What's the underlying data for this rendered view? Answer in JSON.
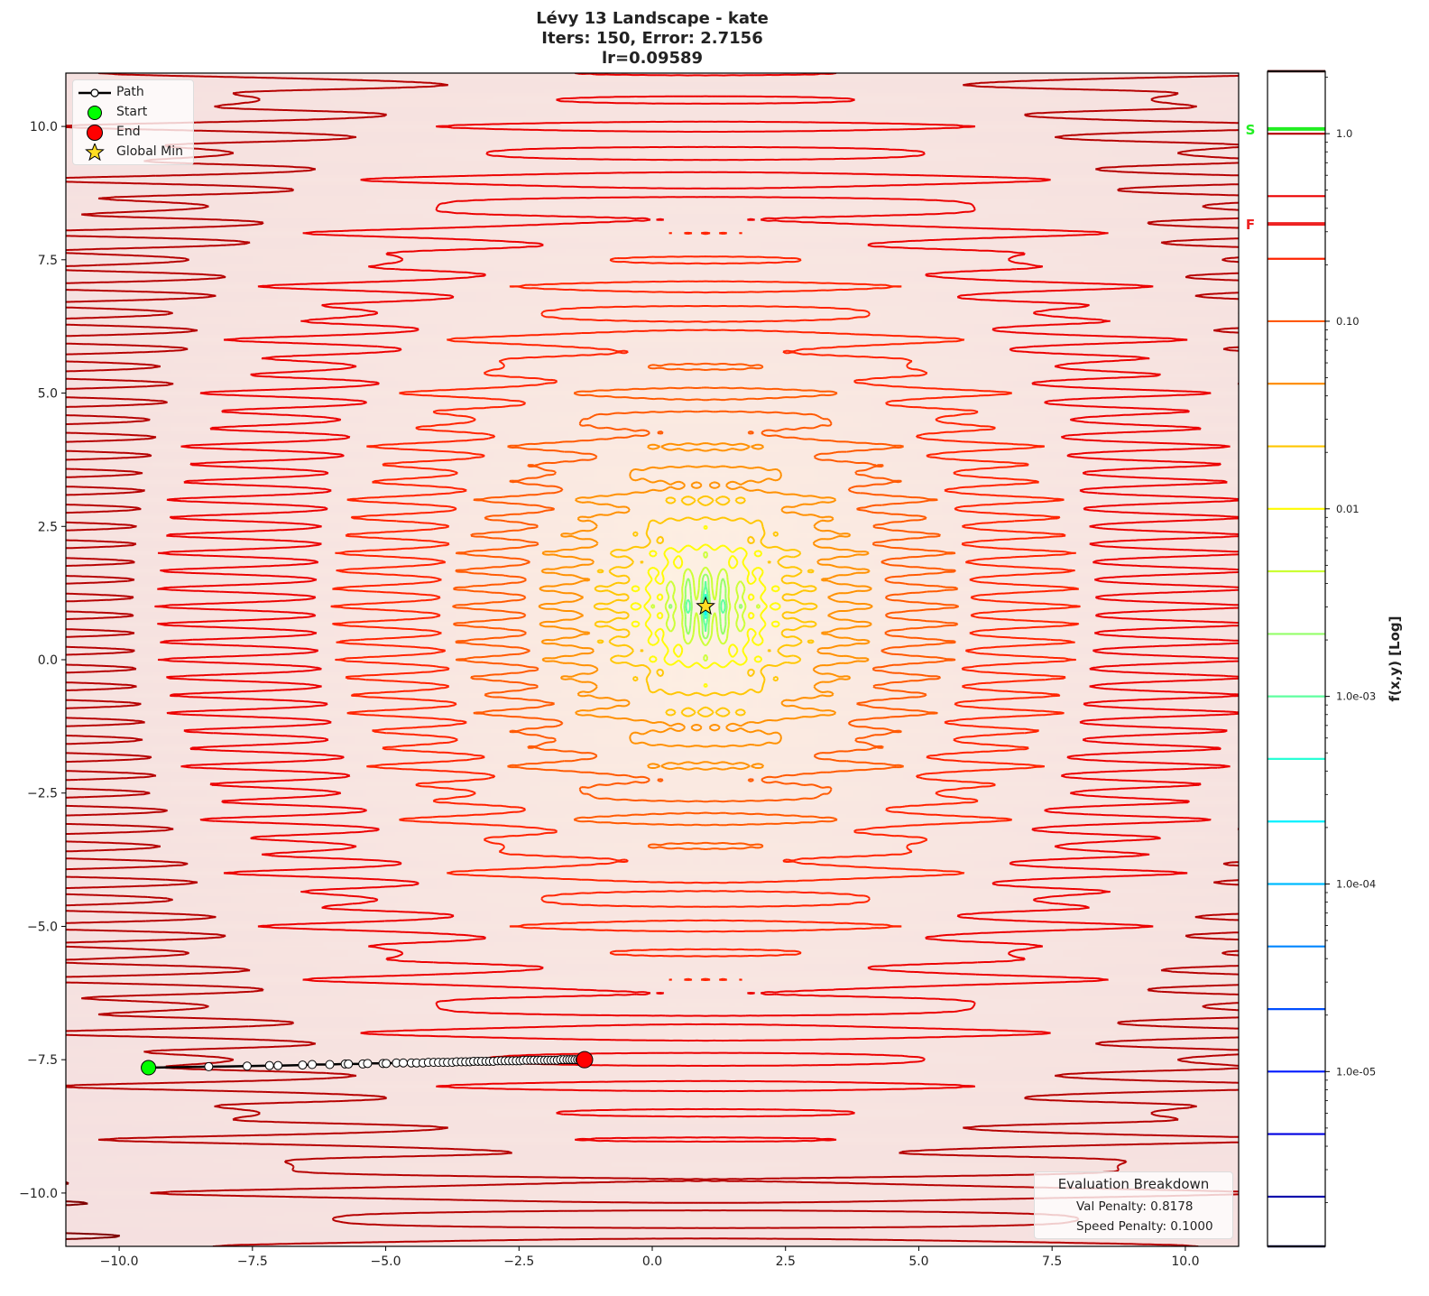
{
  "title": {
    "line1": "Lévy 13 Landscape - kate",
    "line2": "Iters: 150, Error: 2.7156",
    "line3": "lr=0.09589"
  },
  "legend": {
    "items": [
      {
        "label": "Path",
        "icon": "line-with-circle-marker",
        "color": "#000000"
      },
      {
        "label": "Start",
        "icon": "circle-marker",
        "color": "#00ff00"
      },
      {
        "label": "End",
        "icon": "circle-marker",
        "color": "#ff0000"
      },
      {
        "label": "Global Min",
        "icon": "star-marker",
        "color": "#ffdd22"
      }
    ]
  },
  "evaluation": {
    "title": "Evaluation Breakdown",
    "val_penalty": "Val Penalty: 0.8178",
    "speed_penalty": "Speed Penalty: 0.1000"
  },
  "colorbar": {
    "label": "f(x,y) [Log]",
    "scale": "log",
    "range": [
      1.17e-06,
      2.15
    ],
    "colormap": "jet",
    "ticks": [
      {
        "value": 1.0,
        "label": "1.0"
      },
      {
        "value": 0.1,
        "label": "0.10"
      },
      {
        "value": 0.01,
        "label": "0.01"
      },
      {
        "value": 0.001,
        "label": "1.0e-03"
      },
      {
        "value": 0.0001,
        "label": "1.0e-04"
      },
      {
        "value": 1e-05,
        "label": "1.0e-05"
      }
    ],
    "markers": [
      {
        "label": "S",
        "value": 1.06,
        "color": "#22ee22"
      },
      {
        "label": "F",
        "value": 0.33,
        "color": "#ee2222"
      }
    ]
  },
  "chart_data": {
    "type": "contour",
    "function": "Lévy 13",
    "title": "Lévy 13 Landscape - kate\nIters: 150, Error: 2.7156\nlr=0.09589",
    "xlabel": "",
    "ylabel": "",
    "xlim": [
      -11,
      11
    ],
    "ylim": [
      -11,
      11
    ],
    "xticks": [
      {
        "value": -10,
        "label": "−10.0"
      },
      {
        "value": -7.5,
        "label": "−7.5"
      },
      {
        "value": -5,
        "label": "−5.0"
      },
      {
        "value": -2.5,
        "label": "−2.5"
      },
      {
        "value": 0,
        "label": "0.0"
      },
      {
        "value": 2.5,
        "label": "2.5"
      },
      {
        "value": 5,
        "label": "5.0"
      },
      {
        "value": 7.5,
        "label": "7.5"
      },
      {
        "value": 10,
        "label": "10.0"
      }
    ],
    "yticks": [
      {
        "value": 10,
        "label": "10.0"
      },
      {
        "value": 7.5,
        "label": "7.5"
      },
      {
        "value": 5,
        "label": "5.0"
      },
      {
        "value": 2.5,
        "label": "2.5"
      },
      {
        "value": 0,
        "label": "0.0"
      },
      {
        "value": -2.5,
        "label": "−2.5"
      },
      {
        "value": -5,
        "label": "−5.0"
      },
      {
        "value": -7.5,
        "label": "−7.5"
      },
      {
        "value": -10,
        "label": "−10.0"
      }
    ],
    "contour_levels_log10": [
      -5.667,
      -5.333,
      -5.0,
      -4.667,
      -4.333,
      -4.0,
      -3.667,
      -3.333,
      -3.0,
      -2.667,
      -2.333,
      -2.0,
      -1.667,
      -1.333,
      -1.0,
      -0.667,
      -0.333,
      0.0,
      0.333
    ],
    "grid": false,
    "legend_position": "top-left",
    "global_min": {
      "x": 1.0,
      "y": 1.0
    },
    "start": {
      "x": -9.45,
      "y": -7.65
    },
    "end": {
      "x": -1.27,
      "y": -7.5
    },
    "path": {
      "x": [
        -9.45,
        -8.32,
        -7.6,
        -7.18,
        -7.02,
        -6.56,
        -6.38,
        -6.05,
        -5.76,
        -5.7,
        -5.43,
        -5.34,
        -5.05,
        -4.99,
        -4.8,
        -4.67,
        -4.52,
        -4.42,
        -4.3,
        -4.2,
        -4.1,
        -4.01,
        -3.92,
        -3.84,
        -3.75,
        -3.67,
        -3.58,
        -3.5,
        -3.42,
        -3.35,
        -3.27,
        -3.2,
        -3.12,
        -3.05,
        -2.98,
        -2.9,
        -2.83,
        -2.76,
        -2.69,
        -2.62,
        -2.55,
        -2.48,
        -2.42,
        -2.35,
        -2.28,
        -2.22,
        -2.15,
        -2.09,
        -2.02,
        -1.96,
        -1.9,
        -1.84,
        -1.78,
        -1.72,
        -1.66,
        -1.6,
        -1.55,
        -1.5,
        -1.45,
        -1.4,
        -1.36,
        -1.32,
        -1.29,
        -1.27
      ],
      "y": [
        -7.65,
        -7.63,
        -7.62,
        -7.61,
        -7.61,
        -7.6,
        -7.59,
        -7.59,
        -7.58,
        -7.58,
        -7.58,
        -7.57,
        -7.57,
        -7.57,
        -7.56,
        -7.56,
        -7.56,
        -7.56,
        -7.56,
        -7.55,
        -7.55,
        -7.55,
        -7.55,
        -7.55,
        -7.55,
        -7.54,
        -7.54,
        -7.54,
        -7.54,
        -7.53,
        -7.53,
        -7.53,
        -7.53,
        -7.53,
        -7.53,
        -7.52,
        -7.52,
        -7.52,
        -7.52,
        -7.52,
        -7.52,
        -7.52,
        -7.51,
        -7.51,
        -7.51,
        -7.51,
        -7.51,
        -7.51,
        -7.51,
        -7.51,
        -7.51,
        -7.51,
        -7.51,
        -7.5,
        -7.5,
        -7.5,
        -7.5,
        -7.5,
        -7.5,
        -7.5,
        -7.5,
        -7.5,
        -7.5,
        -7.5
      ]
    }
  }
}
